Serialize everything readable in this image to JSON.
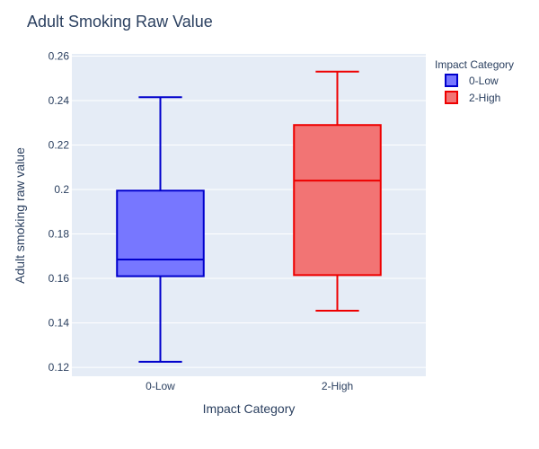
{
  "chart_data": {
    "type": "box",
    "title": "Adult Smoking Raw Value",
    "xlabel": "Impact Category",
    "ylabel": "Adult smoking raw value",
    "ylim": [
      0.116,
      0.261
    ],
    "yticks": [
      0.12,
      0.14,
      0.16,
      0.18,
      0.2,
      0.22,
      0.24,
      0.26
    ],
    "ytick_labels": [
      "0.12",
      "0.14",
      "0.16",
      "0.18",
      "0.2",
      "0.22",
      "0.24",
      "0.26"
    ],
    "categories": [
      "0-Low",
      "2-High"
    ],
    "grid": true,
    "legend": {
      "title": "Impact Category",
      "placement": "top-right",
      "entries": [
        "0-Low",
        "2-High"
      ]
    },
    "series": [
      {
        "name": "0-Low",
        "category": "0-Low",
        "min": 0.1225,
        "q1": 0.161,
        "median": 0.1685,
        "q3": 0.1995,
        "max": 0.2415,
        "line_color": "#0000cc",
        "fill_color": "#7777ff"
      },
      {
        "name": "2-High",
        "category": "2-High",
        "min": 0.1455,
        "q1": 0.1615,
        "median": 0.204,
        "q3": 0.229,
        "max": 0.253,
        "line_color": "#ee0000",
        "fill_color": "#f27474"
      }
    ]
  }
}
